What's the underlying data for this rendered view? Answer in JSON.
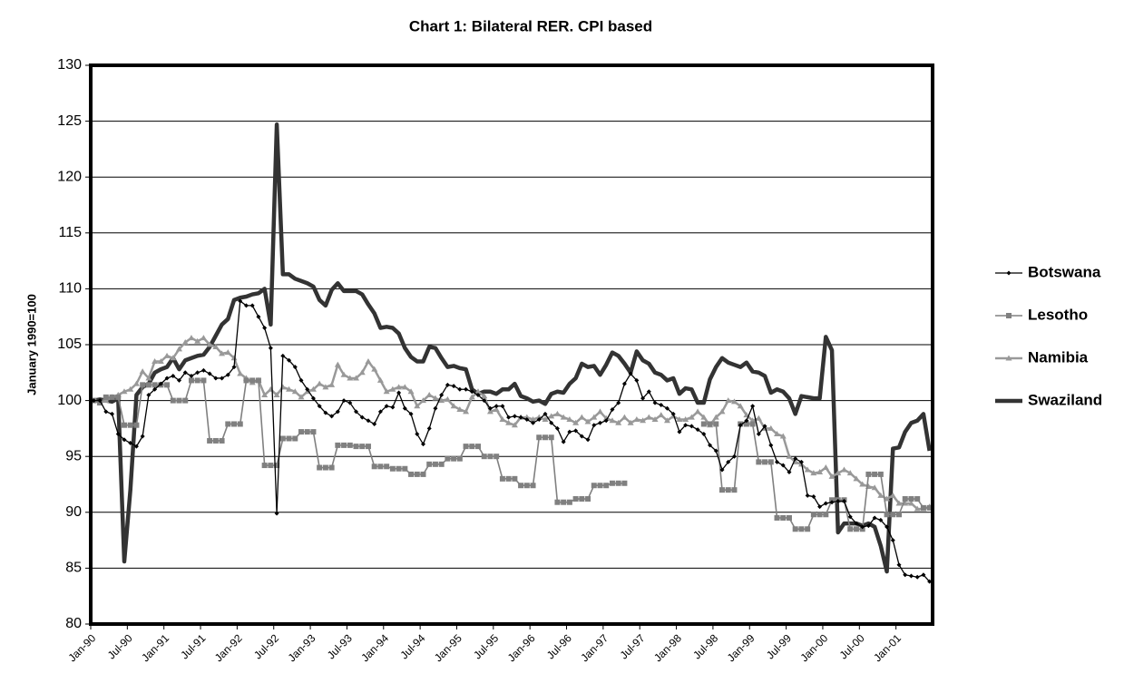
{
  "chart_data": {
    "type": "line",
    "title": "Chart 1: Bilateral RER. CPI based",
    "y_label": "January 1990=100",
    "categories": [
      "Jan-90",
      null,
      null,
      null,
      null,
      null,
      "Jul-90",
      null,
      null,
      null,
      null,
      null,
      "Jan-91",
      null,
      null,
      null,
      null,
      null,
      "Jul-91",
      null,
      null,
      null,
      null,
      null,
      "Jan-92",
      null,
      null,
      null,
      null,
      null,
      "Jul-92",
      null,
      null,
      null,
      null,
      null,
      "Jan-93",
      null,
      null,
      null,
      null,
      null,
      "Jul-93",
      null,
      null,
      null,
      null,
      null,
      "Jan-94",
      null,
      null,
      null,
      null,
      null,
      "Jul-94",
      null,
      null,
      null,
      null,
      null,
      "Jan-95",
      null,
      null,
      null,
      null,
      null,
      "Jul-95",
      null,
      null,
      null,
      null,
      null,
      "Jan-96",
      null,
      null,
      null,
      null,
      null,
      "Jul-96",
      null,
      null,
      null,
      null,
      null,
      "Jan-97",
      null,
      null,
      null,
      null,
      null,
      "Jul-97",
      null,
      null,
      null,
      null,
      null,
      "Jan-98",
      null,
      null,
      null,
      null,
      null,
      "Jul-98",
      null,
      null,
      null,
      null,
      null,
      "Jan-99",
      null,
      null,
      null,
      null,
      null,
      "Jul-99",
      null,
      null,
      null,
      null,
      null,
      "Jan-00",
      null,
      null,
      null,
      null,
      null,
      "Jul-00",
      null,
      null,
      null,
      null,
      null,
      "Jan-01",
      null,
      null,
      null,
      null,
      null
    ],
    "ylim": [
      80,
      130
    ],
    "yticks": [
      80,
      85,
      90,
      95,
      100,
      105,
      110,
      115,
      120,
      125,
      130
    ],
    "grid": true,
    "legend": "right",
    "series": [
      {
        "name": "Botswana",
        "color": "#000000",
        "marker": "diamond",
        "values": [
          100,
          100,
          99,
          98.8,
          97,
          96.5,
          96.2,
          95.9,
          96.8,
          100.5,
          101,
          101.5,
          102,
          102.2,
          101.8,
          102.5,
          102.2,
          102.5,
          102.7,
          102.4,
          102,
          102,
          102.3,
          103,
          108.9,
          108.5,
          108.5,
          107.5,
          106.5,
          104.7,
          89.9,
          104,
          103.6,
          103,
          101.8,
          101,
          100.2,
          99.5,
          98.9,
          98.6,
          99,
          100,
          99.8,
          99,
          98.5,
          98.2,
          97.9,
          99,
          99.5,
          99.4,
          100.7,
          99.3,
          98.8,
          97,
          96.1,
          97.5,
          99.3,
          100.5,
          101.4,
          101.3,
          101,
          101,
          100.8,
          100.5,
          100,
          99.3,
          99.5,
          99.5,
          98.5,
          98.6,
          98.5,
          98.3,
          98,
          98.3,
          98.8,
          98,
          97.5,
          96.3,
          97.2,
          97.3,
          96.8,
          96.5,
          97.8,
          98,
          98.2,
          99.2,
          99.8,
          101.5,
          102.4,
          101.8,
          100.2,
          100.8,
          99.8,
          99.6,
          99.3,
          98.8,
          97.2,
          97.8,
          97.7,
          97.4,
          97,
          96,
          95.5,
          93.8,
          94.5,
          95,
          97.8,
          98.2,
          99.5,
          97,
          97.7,
          96,
          94.5,
          94.2,
          93.6,
          94.8,
          94.5,
          91.5,
          91.4,
          90.5,
          90.8,
          90.9,
          91,
          91,
          89.6,
          89,
          88.7,
          88.8,
          89.5,
          89.3,
          88.7,
          87.5,
          85.3,
          84.4,
          84.3,
          84.2,
          84.4,
          83.8
        ]
      },
      {
        "name": "Lesotho",
        "color": "#808080",
        "marker": "square",
        "values": [
          100,
          99.8,
          100.3,
          100.3,
          100.3,
          97.8,
          97.8,
          97.8,
          101.4,
          101.4,
          101.4,
          101.4,
          101.4,
          100,
          100,
          100,
          101.8,
          101.8,
          101.8,
          96.4,
          96.4,
          96.4,
          97.9,
          97.9,
          97.9,
          101.8,
          101.8,
          101.8,
          94.2,
          94.2,
          94.2,
          96.6,
          96.6,
          96.6,
          97.2,
          97.2,
          97.2,
          94,
          94,
          94,
          96,
          96,
          96,
          95.9,
          95.9,
          95.9,
          94.1,
          94.1,
          94.1,
          93.9,
          93.9,
          93.9,
          93.4,
          93.4,
          93.4,
          94.3,
          94.3,
          94.3,
          94.8,
          94.8,
          94.8,
          95.9,
          95.9,
          95.9,
          95,
          95,
          95,
          93,
          93,
          93,
          92.4,
          92.4,
          92.4,
          96.7,
          96.7,
          96.7,
          90.9,
          90.9,
          90.9,
          91.2,
          91.2,
          91.2,
          92.4,
          92.4,
          92.4,
          92.6,
          92.6,
          92.6,
          null,
          null,
          null,
          null,
          null,
          null,
          null,
          null,
          null,
          null,
          null,
          null,
          97.9,
          97.9,
          97.9,
          92,
          92,
          92,
          97.9,
          97.9,
          97.9,
          94.5,
          94.5,
          94.5,
          89.5,
          89.5,
          89.5,
          88.5,
          88.5,
          88.5,
          89.8,
          89.8,
          89.8,
          91.1,
          91.1,
          91.1,
          88.5,
          88.5,
          88.5,
          93.4,
          93.4,
          93.4,
          89.8,
          89.8,
          89.8,
          91.2,
          91.2,
          91.2,
          90.4,
          90.4
        ]
      },
      {
        "name": "Namibia",
        "color": "#999999",
        "marker": "triangle",
        "values": [
          100,
          99.8,
          100,
          100.3,
          100.5,
          100.8,
          101,
          101.5,
          102.6,
          102,
          103.5,
          103.5,
          104,
          103.8,
          104.6,
          105.2,
          105.6,
          105.3,
          105.6,
          105,
          104.8,
          104.2,
          104.3,
          103.8,
          102.4,
          102,
          101.6,
          101.8,
          100.5,
          101,
          100.5,
          101.2,
          101,
          100.8,
          100.3,
          100.8,
          101,
          101.5,
          101.2,
          101.4,
          103.2,
          102.3,
          102,
          102,
          102.5,
          103.5,
          102.8,
          101.8,
          100.8,
          101,
          101.2,
          101.2,
          100.8,
          99.5,
          100,
          100.5,
          100.2,
          100,
          100.1,
          99.5,
          99.2,
          99,
          100.3,
          100.8,
          100.4,
          99,
          99.2,
          98.3,
          98,
          97.8,
          98.5,
          98.5,
          98.3,
          98.5,
          98.3,
          98.6,
          98.8,
          98.5,
          98.3,
          98,
          98.5,
          98.1,
          98.5,
          99,
          98.4,
          98.2,
          98,
          98.5,
          98,
          98.3,
          98.2,
          98.5,
          98.3,
          98.7,
          98.2,
          98.6,
          98.3,
          98.3,
          98.5,
          99,
          98.5,
          97.8,
          98.5,
          99,
          100,
          99.9,
          99.5,
          98.7,
          98.2,
          98.4,
          97.5,
          97.5,
          97,
          96.8,
          95,
          94.5,
          94.3,
          93.8,
          93.5,
          93.6,
          94,
          93.2,
          93.5,
          93.8,
          93.5,
          93,
          92.5,
          92.3,
          92.2,
          91.5,
          91.2,
          91.5,
          90.8,
          90.8,
          90.8,
          90.3,
          90.3,
          90.5
        ]
      },
      {
        "name": "Swaziland",
        "color": "#333333",
        "marker": "none",
        "values": [
          100,
          100.1,
          100,
          99.9,
          100.2,
          85.6,
          92,
          100.5,
          101.2,
          101.5,
          102.5,
          102.8,
          103,
          103.8,
          102.8,
          103.6,
          103.8,
          104,
          104.1,
          104.8,
          105.8,
          106.8,
          107.3,
          109,
          109.2,
          109.3,
          109.5,
          109.6,
          110,
          106.8,
          124.7,
          111.3,
          111.3,
          110.9,
          110.7,
          110.5,
          110.2,
          109,
          108.5,
          109.9,
          110.5,
          109.8,
          109.8,
          109.8,
          109.5,
          108.6,
          107.8,
          106.5,
          106.6,
          106.5,
          106,
          104.7,
          103.9,
          103.5,
          103.5,
          104.8,
          104.7,
          103.8,
          103,
          103.1,
          102.9,
          102.8,
          101,
          100.6,
          100.8,
          100.8,
          100.6,
          101,
          101,
          101.5,
          100.4,
          100.2,
          99.9,
          100,
          99.7,
          100.6,
          100.8,
          100.7,
          101.5,
          102,
          103.3,
          103,
          103.1,
          102.3,
          103.2,
          104.3,
          104,
          103.3,
          102.5,
          104.4,
          103.6,
          103.3,
          102.5,
          102.3,
          101.8,
          102,
          100.6,
          101.1,
          101,
          99.8,
          99.8,
          101.9,
          103,
          103.8,
          103.4,
          103.2,
          103,
          103.4,
          102.6,
          102.5,
          102.2,
          100.7,
          101,
          100.8,
          100.2,
          98.8,
          100.4,
          100.3,
          100.2,
          100.2,
          105.7,
          104.5,
          88.2,
          89,
          89,
          89,
          88.8,
          89,
          88.7,
          87,
          84.7,
          95.7,
          95.8,
          97.2,
          98,
          98.2,
          98.8,
          95.5
        ]
      }
    ]
  }
}
